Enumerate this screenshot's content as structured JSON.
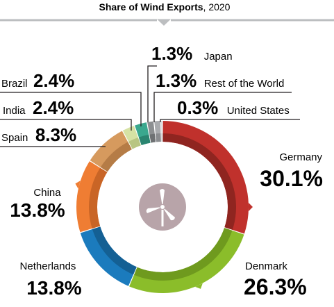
{
  "chart_data": {
    "type": "pie",
    "title": "Share of Wind Exports",
    "title_year": "2020",
    "unit": "%",
    "slices": [
      {
        "name": "Germany",
        "value": 30.1,
        "label": "30.1%",
        "color": "#c0312c",
        "inner_color": "#8f2520"
      },
      {
        "name": "Denmark",
        "value": 26.3,
        "label": "26.3%",
        "color": "#8bbd2a",
        "inner_color": "#6f9a1e"
      },
      {
        "name": "Netherlands",
        "value": 13.8,
        "label": "13.8%",
        "color": "#1b7bbd",
        "inner_color": "#146094"
      },
      {
        "name": "China",
        "value": 13.8,
        "label": "13.8%",
        "color": "#ef7d33",
        "inner_color": "#c96526"
      },
      {
        "name": "Spain",
        "value": 8.3,
        "label": "8.3%",
        "color": "#d69a5e",
        "inner_color": "#b57c46"
      },
      {
        "name": "India",
        "value": 2.4,
        "label": "2.4%",
        "color": "#d6e2a4",
        "inner_color": "#b8c582"
      },
      {
        "name": "Brazil",
        "value": 2.4,
        "label": "2.4%",
        "color": "#3aa88e",
        "inner_color": "#2a8570"
      },
      {
        "name": "Japan",
        "value": 1.3,
        "label": "1.3%",
        "color": "#8c8f91",
        "inner_color": "#6e7173"
      },
      {
        "name": "Rest of the World",
        "value": 1.3,
        "label": "1.3%",
        "color": "#a9abae",
        "inner_color": "#8a8c8f"
      },
      {
        "name": "United States",
        "value": 0.3,
        "label": "0.3%",
        "color": "#c8cacc",
        "inner_color": "#a8aaac"
      }
    ]
  },
  "colors": {
    "title_line": "#bcbec0",
    "leader_line": "#231f20",
    "center_circle": "#b8a4a9",
    "turbine": "#ffffff"
  },
  "icons": {
    "center": "wind-turbine-icon"
  }
}
